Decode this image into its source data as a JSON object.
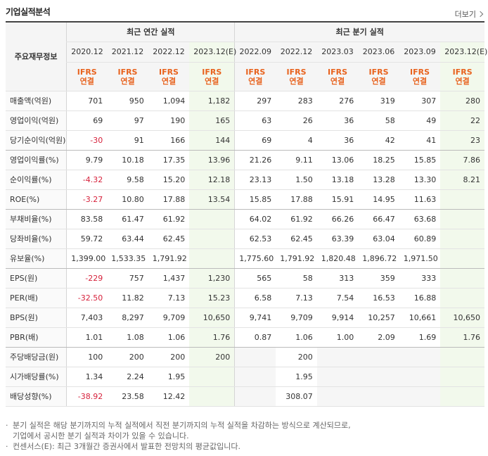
{
  "header": {
    "title": "기업실적분석",
    "more_label": "더보기"
  },
  "table": {
    "corner_label": "주요재무정보",
    "group_annual": "최근 연간 실적",
    "group_quarter": "최근 분기 실적",
    "periods": [
      "2020.12",
      "2021.12",
      "2022.12",
      "2023.12(E)",
      "2022.09",
      "2022.12",
      "2023.03",
      "2023.06",
      "2023.09",
      "2023.12(E)"
    ],
    "basis_top": [
      "IFRS",
      "IFRS",
      "IFRS",
      "IFRS",
      "IFRS",
      "IFRS",
      "IFRS",
      "IFRS",
      "IFRS",
      "IFRS"
    ],
    "basis_bottom": [
      "연결",
      "연결",
      "연결",
      "연결",
      "연결",
      "연결",
      "연결",
      "연결",
      "연결",
      "연결"
    ],
    "rows": [
      {
        "label": "매출액(억원)",
        "values": [
          "701",
          "950",
          "1,094",
          "1,182",
          "297",
          "283",
          "276",
          "319",
          "307",
          "280"
        ]
      },
      {
        "label": "영업이익(억원)",
        "values": [
          "69",
          "97",
          "190",
          "165",
          "63",
          "26",
          "36",
          "58",
          "49",
          "22"
        ]
      },
      {
        "label": "당기순이익(억원)",
        "values": [
          "-30",
          "91",
          "166",
          "144",
          "69",
          "4",
          "36",
          "42",
          "41",
          "23"
        ]
      },
      {
        "label": "영업이익률(%)",
        "values": [
          "9.79",
          "10.18",
          "17.35",
          "13.96",
          "21.26",
          "9.11",
          "13.06",
          "18.25",
          "15.85",
          "7.86"
        ]
      },
      {
        "label": "순이익률(%)",
        "values": [
          "-4.32",
          "9.58",
          "15.20",
          "12.18",
          "23.13",
          "1.50",
          "13.18",
          "13.28",
          "13.30",
          "8.21"
        ]
      },
      {
        "label": "ROE(%)",
        "values": [
          "-3.27",
          "10.80",
          "17.88",
          "13.54",
          "15.85",
          "17.88",
          "15.91",
          "14.95",
          "11.63",
          ""
        ]
      },
      {
        "label": "부채비율(%)",
        "values": [
          "83.58",
          "61.47",
          "61.92",
          "",
          "64.02",
          "61.92",
          "66.26",
          "66.47",
          "63.68",
          ""
        ]
      },
      {
        "label": "당좌비율(%)",
        "values": [
          "59.72",
          "63.44",
          "62.45",
          "",
          "62.53",
          "62.45",
          "63.39",
          "63.04",
          "60.89",
          ""
        ]
      },
      {
        "label": "유보율(%)",
        "values": [
          "1,399.00",
          "1,533.35",
          "1,791.92",
          "",
          "1,775.60",
          "1,791.92",
          "1,820.48",
          "1,896.72",
          "1,971.50",
          ""
        ]
      },
      {
        "label": "EPS(원)",
        "values": [
          "-229",
          "757",
          "1,437",
          "1,230",
          "565",
          "58",
          "313",
          "359",
          "333",
          ""
        ]
      },
      {
        "label": "PER(배)",
        "values": [
          "-32.50",
          "11.82",
          "7.13",
          "15.23",
          "6.58",
          "7.13",
          "7.54",
          "16.53",
          "16.88",
          ""
        ]
      },
      {
        "label": "BPS(원)",
        "values": [
          "7,403",
          "8,297",
          "9,709",
          "10,650",
          "9,741",
          "9,709",
          "9,914",
          "10,257",
          "10,661",
          "10,650"
        ]
      },
      {
        "label": "PBR(배)",
        "values": [
          "1.01",
          "1.08",
          "1.06",
          "1.76",
          "0.87",
          "1.06",
          "1.00",
          "2.09",
          "1.69",
          "1.76"
        ]
      },
      {
        "label": "주당배당금(원)",
        "values": [
          "100",
          "200",
          "200",
          "200",
          "",
          "200",
          "",
          "",
          "",
          ""
        ]
      },
      {
        "label": "시가배당률(%)",
        "values": [
          "1.34",
          "2.24",
          "1.95",
          "",
          "",
          "1.95",
          "",
          "",
          "",
          ""
        ]
      },
      {
        "label": "배당성향(%)",
        "values": [
          "-38.92",
          "23.58",
          "12.42",
          "",
          "",
          "308.07",
          "",
          "",
          "",
          ""
        ]
      }
    ]
  },
  "notes": {
    "bullet": "·",
    "line1a": "분기 실적은 해당 분기까지의 누적 실적에서 직전 분기까지의 누적 실적을 차감하는 방식으로 계산되므로,",
    "line1b": "기업에서 공시한 분기 실적과 차이가 있을 수 있습니다.",
    "line2": "컨센서스(E): 최근 3개월간 증권사에서 발표한 전망치의 평균값입니다."
  }
}
